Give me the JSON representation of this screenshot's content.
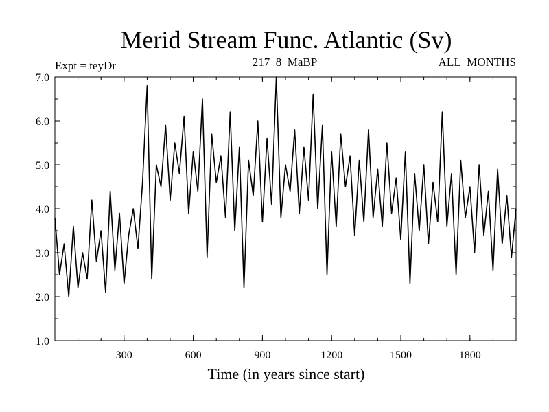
{
  "chart_data": {
    "type": "line",
    "title": "Merid Stream Func. Atlantic (Sv)",
    "subtitle_left": "Expt = teyDr",
    "subtitle_center": "217_8_MaBP",
    "subtitle_right": "ALL_MONTHS",
    "xlabel": "Time (in years since start)",
    "ylabel": "",
    "xlim": [
      0,
      2000
    ],
    "ylim": [
      1.0,
      7.0
    ],
    "x_ticks": [
      300,
      600,
      900,
      1200,
      1500,
      1800
    ],
    "x_tick_labels": [
      "300",
      "600",
      "900",
      "1200",
      "1500",
      "1800"
    ],
    "y_ticks": [
      1.0,
      2.0,
      3.0,
      4.0,
      5.0,
      6.0,
      7.0
    ],
    "y_tick_labels": [
      "1.0",
      "2.0",
      "3.0",
      "4.0",
      "5.0",
      "6.0",
      "7.0"
    ],
    "grid": false,
    "series": [
      {
        "name": "teyDr",
        "x": [
          0,
          20,
          40,
          60,
          80,
          100,
          120,
          140,
          160,
          180,
          200,
          220,
          240,
          260,
          280,
          300,
          320,
          340,
          360,
          380,
          400,
          420,
          440,
          460,
          480,
          500,
          520,
          540,
          560,
          580,
          600,
          620,
          640,
          660,
          680,
          700,
          720,
          740,
          760,
          780,
          800,
          820,
          840,
          860,
          880,
          900,
          920,
          940,
          960,
          980,
          1000,
          1020,
          1040,
          1060,
          1080,
          1100,
          1120,
          1140,
          1160,
          1180,
          1200,
          1220,
          1240,
          1260,
          1280,
          1300,
          1320,
          1340,
          1360,
          1380,
          1400,
          1420,
          1440,
          1460,
          1480,
          1500,
          1520,
          1540,
          1560,
          1580,
          1600,
          1620,
          1640,
          1660,
          1680,
          1700,
          1720,
          1740,
          1760,
          1780,
          1800,
          1820,
          1840,
          1860,
          1880,
          1900,
          1920,
          1940,
          1960,
          1980,
          2000
        ],
        "values": [
          3.8,
          2.5,
          3.2,
          2.0,
          3.6,
          2.2,
          3.0,
          2.4,
          4.2,
          2.8,
          3.5,
          2.1,
          4.4,
          2.6,
          3.9,
          2.3,
          3.4,
          4.0,
          3.1,
          4.6,
          6.8,
          2.4,
          5.0,
          4.5,
          5.9,
          4.2,
          5.5,
          4.8,
          6.1,
          3.9,
          5.3,
          4.4,
          6.5,
          2.9,
          5.7,
          4.6,
          5.2,
          3.8,
          6.2,
          3.5,
          5.4,
          2.2,
          5.1,
          4.3,
          6.0,
          3.7,
          5.6,
          4.1,
          7.0,
          3.8,
          5.0,
          4.4,
          5.8,
          3.9,
          5.4,
          4.2,
          6.6,
          4.0,
          5.9,
          2.5,
          5.3,
          3.6,
          5.7,
          4.5,
          5.2,
          3.4,
          5.1,
          3.7,
          5.8,
          3.8,
          4.9,
          3.6,
          5.5,
          3.9,
          4.7,
          3.3,
          5.3,
          2.3,
          4.8,
          3.5,
          5.0,
          3.2,
          4.6,
          3.7,
          6.2,
          3.6,
          4.8,
          2.5,
          5.1,
          3.8,
          4.5,
          3.0,
          5.0,
          3.4,
          4.4,
          2.6,
          4.9,
          3.2,
          4.3,
          2.9,
          4.0
        ]
      }
    ]
  }
}
